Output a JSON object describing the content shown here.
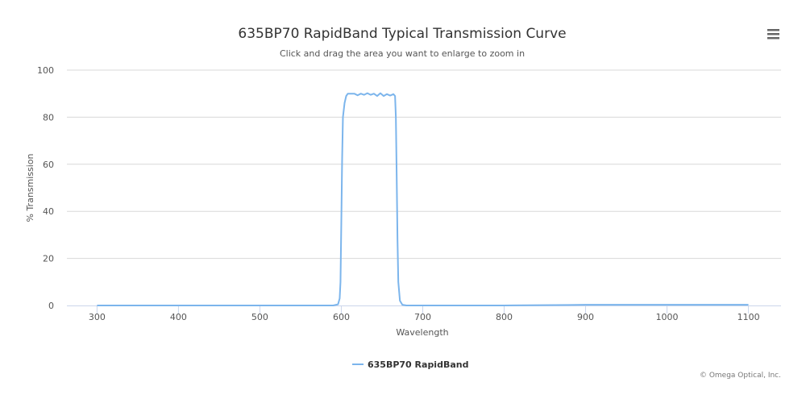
{
  "chart_data": {
    "type": "line",
    "title": "635BP70 RapidBand Typical Transmission Curve",
    "subtitle": "Click and drag the area you want to enlarge to zoom in",
    "xlabel": "Wavelength",
    "ylabel": "% Transmission",
    "xlim": [
      263,
      1140
    ],
    "ylim": [
      0,
      100
    ],
    "xticks": [
      300,
      400,
      500,
      600,
      700,
      800,
      900,
      1000,
      1100
    ],
    "yticks": [
      0,
      20,
      40,
      60,
      80,
      100
    ],
    "grid": true,
    "legend_position": "bottom-center",
    "series": [
      {
        "name": "635BP70 RapidBand",
        "color": "#7cb5ec",
        "x": [
          300,
          400,
          500,
          590,
          596,
          598,
          599,
          600,
          601,
          602,
          604,
          606,
          608,
          612,
          616,
          620,
          624,
          628,
          632,
          636,
          640,
          644,
          648,
          652,
          656,
          660,
          664,
          666,
          667,
          668,
          669,
          670,
          672,
          675,
          680,
          700,
          800,
          880,
          900,
          950,
          1000,
          1050,
          1100
        ],
        "y": [
          0,
          0,
          0,
          0,
          0.5,
          3,
          10,
          35,
          62,
          80,
          86,
          89,
          90,
          90,
          90,
          89.3,
          90,
          89.5,
          90.2,
          89.5,
          90,
          89,
          90.2,
          89,
          89.8,
          89.2,
          89.8,
          89,
          80,
          55,
          28,
          10,
          2,
          0.3,
          0,
          0,
          0,
          0.2,
          0.3,
          0.3,
          0.3,
          0.3,
          0.3
        ]
      }
    ]
  },
  "credits": "© Omega Optical, Inc.",
  "menu": {
    "icon": "hamburger-menu-icon"
  }
}
